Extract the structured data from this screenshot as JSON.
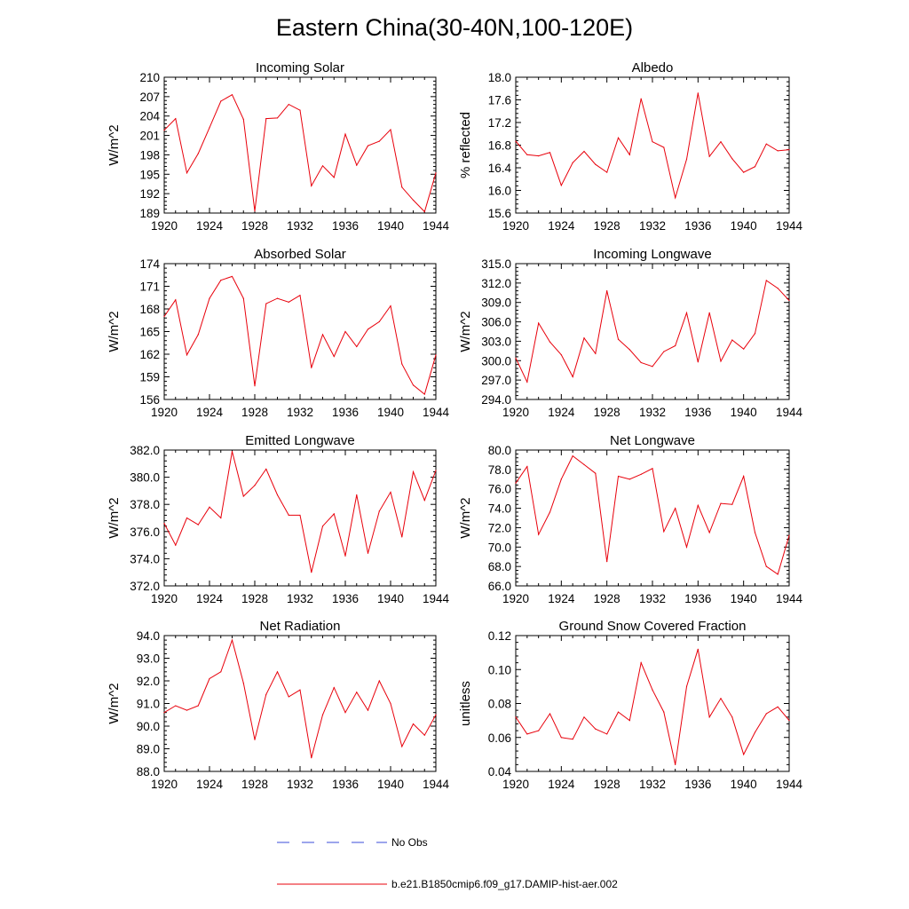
{
  "figure": {
    "title": "Eastern China(30-40N,100-120E)",
    "line_color": "#e8000b"
  },
  "legend": {
    "items": [
      {
        "label": "No Obs",
        "color": "#3a4bd8",
        "style": "dashed"
      },
      {
        "label": "b.e21.B1850cmip6.f09_g17.DAMIP-hist-aer.002",
        "color": "#e8000b",
        "style": "solid"
      }
    ]
  },
  "chart_data": [
    {
      "type": "line",
      "title": "Incoming Solar",
      "xlabel": "",
      "ylabel": "W/m^2",
      "xlim": [
        1920,
        1944
      ],
      "ylim": [
        189,
        210
      ],
      "xticks": [
        "1920",
        "1924",
        "1928",
        "1932",
        "1936",
        "1940",
        "1944"
      ],
      "yticks": [
        "189",
        "192",
        "195",
        "198",
        "201",
        "204",
        "207",
        "210"
      ],
      "x": [
        1920,
        1921,
        1922,
        1923,
        1924,
        1925,
        1926,
        1927,
        1928,
        1929,
        1930,
        1931,
        1932,
        1933,
        1934,
        1935,
        1936,
        1937,
        1938,
        1939,
        1940,
        1941,
        1942,
        1943,
        1944
      ],
      "series": [
        {
          "name": "b.e21.B1850cmip6.f09_g17.DAMIP-hist-aer.002",
          "values": [
            201.8,
            203.6,
            195.2,
            198.2,
            202.2,
            206.3,
            207.3,
            203.5,
            189.3,
            203.6,
            203.7,
            205.8,
            204.9,
            193.2,
            196.3,
            194.5,
            201.2,
            196.4,
            199.4,
            200.1,
            201.9,
            193.0,
            191.0,
            189.2,
            195.2
          ]
        }
      ]
    },
    {
      "type": "line",
      "title": "Albedo",
      "xlabel": "",
      "ylabel": "% reflected",
      "xlim": [
        1920,
        1944
      ],
      "ylim": [
        15.6,
        18.0
      ],
      "xticks": [
        "1920",
        "1924",
        "1928",
        "1932",
        "1936",
        "1940",
        "1944"
      ],
      "yticks": [
        "15.6",
        "16.0",
        "16.4",
        "16.8",
        "17.2",
        "17.6",
        "18.0"
      ],
      "x": [
        1920,
        1921,
        1922,
        1923,
        1924,
        1925,
        1926,
        1927,
        1928,
        1929,
        1930,
        1931,
        1932,
        1933,
        1934,
        1935,
        1936,
        1937,
        1938,
        1939,
        1940,
        1941,
        1942,
        1943,
        1944
      ],
      "series": [
        {
          "name": "b.e21.B1850cmip6.f09_g17.DAMIP-hist-aer.002",
          "values": [
            16.87,
            16.63,
            16.61,
            16.67,
            16.09,
            16.49,
            16.69,
            16.46,
            16.32,
            16.93,
            16.63,
            17.62,
            16.86,
            16.76,
            15.87,
            16.55,
            17.72,
            16.6,
            16.86,
            16.56,
            16.32,
            16.42,
            16.82,
            16.7,
            16.72
          ]
        }
      ]
    },
    {
      "type": "line",
      "title": "Absorbed Solar",
      "xlabel": "",
      "ylabel": "W/m^2",
      "xlim": [
        1920,
        1944
      ],
      "ylim": [
        156,
        174
      ],
      "xticks": [
        "1920",
        "1924",
        "1928",
        "1932",
        "1936",
        "1940",
        "1944"
      ],
      "yticks": [
        "156",
        "159",
        "162",
        "165",
        "168",
        "171",
        "174"
      ],
      "x": [
        1920,
        1921,
        1922,
        1923,
        1924,
        1925,
        1926,
        1927,
        1928,
        1929,
        1930,
        1931,
        1932,
        1933,
        1934,
        1935,
        1936,
        1937,
        1938,
        1939,
        1940,
        1941,
        1942,
        1943,
        1944
      ],
      "series": [
        {
          "name": "b.e21.B1850cmip6.f09_g17.DAMIP-hist-aer.002",
          "values": [
            167.0,
            169.2,
            161.9,
            164.6,
            169.4,
            171.8,
            172.3,
            169.4,
            157.8,
            168.7,
            169.4,
            168.9,
            169.8,
            160.2,
            164.6,
            161.7,
            165.0,
            163.0,
            165.3,
            166.3,
            168.4,
            160.7,
            157.9,
            156.7,
            161.9
          ]
        }
      ]
    },
    {
      "type": "line",
      "title": "Incoming Longwave",
      "xlabel": "",
      "ylabel": "W/m^2",
      "xlim": [
        1920,
        1944
      ],
      "ylim": [
        294.0,
        315.0
      ],
      "xticks": [
        "1920",
        "1924",
        "1928",
        "1932",
        "1936",
        "1940",
        "1944"
      ],
      "yticks": [
        "294.0",
        "297.0",
        "300.0",
        "303.0",
        "306.0",
        "309.0",
        "312.0",
        "315.0"
      ],
      "x": [
        1920,
        1921,
        1922,
        1923,
        1924,
        1925,
        1926,
        1927,
        1928,
        1929,
        1930,
        1931,
        1932,
        1933,
        1934,
        1935,
        1936,
        1937,
        1938,
        1939,
        1940,
        1941,
        1942,
        1943,
        1944
      ],
      "series": [
        {
          "name": "b.e21.B1850cmip6.f09_g17.DAMIP-hist-aer.002",
          "values": [
            300.4,
            296.7,
            305.8,
            302.9,
            300.9,
            297.5,
            303.5,
            301.1,
            310.8,
            303.3,
            301.7,
            299.7,
            299.1,
            301.4,
            302.3,
            307.4,
            299.8,
            307.4,
            299.9,
            303.2,
            301.8,
            304.2,
            312.4,
            311.2,
            309.3
          ]
        }
      ]
    },
    {
      "type": "line",
      "title": "Emitted Longwave",
      "xlabel": "",
      "ylabel": "W/m^2",
      "xlim": [
        1920,
        1944
      ],
      "ylim": [
        372.0,
        382.0
      ],
      "xticks": [
        "1920",
        "1924",
        "1928",
        "1932",
        "1936",
        "1940",
        "1944"
      ],
      "yticks": [
        "372.0",
        "374.0",
        "376.0",
        "378.0",
        "380.0",
        "382.0"
      ],
      "x": [
        1920,
        1921,
        1922,
        1923,
        1924,
        1925,
        1926,
        1927,
        1928,
        1929,
        1930,
        1931,
        1932,
        1933,
        1934,
        1935,
        1936,
        1937,
        1938,
        1939,
        1940,
        1941,
        1942,
        1943,
        1944
      ],
      "series": [
        {
          "name": "b.e21.B1850cmip6.f09_g17.DAMIP-hist-aer.002",
          "values": [
            376.6,
            375.0,
            377.0,
            376.5,
            377.8,
            377.0,
            381.9,
            378.6,
            379.4,
            380.6,
            378.7,
            377.2,
            377.2,
            373.0,
            376.4,
            377.3,
            374.2,
            378.7,
            374.4,
            377.5,
            378.9,
            375.6,
            380.4,
            378.3,
            380.5
          ]
        }
      ]
    },
    {
      "type": "line",
      "title": "Net Longwave",
      "xlabel": "",
      "ylabel": "W/m^2",
      "xlim": [
        1920,
        1944
      ],
      "ylim": [
        66.0,
        80.0
      ],
      "xticks": [
        "1920",
        "1924",
        "1928",
        "1932",
        "1936",
        "1940",
        "1944"
      ],
      "yticks": [
        "66.0",
        "68.0",
        "70.0",
        "72.0",
        "74.0",
        "76.0",
        "78.0",
        "80.0"
      ],
      "x": [
        1920,
        1921,
        1922,
        1923,
        1924,
        1925,
        1926,
        1927,
        1928,
        1929,
        1930,
        1931,
        1932,
        1933,
        1934,
        1935,
        1936,
        1937,
        1938,
        1939,
        1940,
        1941,
        1942,
        1943,
        1944
      ],
      "series": [
        {
          "name": "b.e21.B1850cmip6.f09_g17.DAMIP-hist-aer.002",
          "values": [
            76.6,
            78.3,
            71.3,
            73.6,
            77.0,
            79.4,
            78.5,
            77.6,
            68.5,
            77.3,
            77.0,
            77.5,
            78.1,
            71.6,
            74.0,
            70.0,
            74.3,
            71.5,
            74.5,
            74.4,
            77.3,
            71.5,
            68.0,
            67.2,
            71.2
          ]
        }
      ]
    },
    {
      "type": "line",
      "title": "Net Radiation",
      "xlabel": "",
      "ylabel": "W/m^2",
      "xlim": [
        1920,
        1944
      ],
      "ylim": [
        88.0,
        94.0
      ],
      "xticks": [
        "1920",
        "1924",
        "1928",
        "1932",
        "1936",
        "1940",
        "1944"
      ],
      "yticks": [
        "88.0",
        "89.0",
        "90.0",
        "91.0",
        "92.0",
        "93.0",
        "94.0"
      ],
      "x": [
        1920,
        1921,
        1922,
        1923,
        1924,
        1925,
        1926,
        1927,
        1928,
        1929,
        1930,
        1931,
        1932,
        1933,
        1934,
        1935,
        1936,
        1937,
        1938,
        1939,
        1940,
        1941,
        1942,
        1943,
        1944
      ],
      "series": [
        {
          "name": "b.e21.B1850cmip6.f09_g17.DAMIP-hist-aer.002",
          "values": [
            90.6,
            90.9,
            90.7,
            90.9,
            92.1,
            92.4,
            93.8,
            91.9,
            89.4,
            91.4,
            92.4,
            91.3,
            91.6,
            88.6,
            90.5,
            91.7,
            90.6,
            91.5,
            90.7,
            92.0,
            91.0,
            89.1,
            90.1,
            89.6,
            90.5
          ]
        }
      ]
    },
    {
      "type": "line",
      "title": "Ground Snow Covered Fraction",
      "xlabel": "",
      "ylabel": "unitless",
      "xlim": [
        1920,
        1944
      ],
      "ylim": [
        0.04,
        0.12
      ],
      "xticks": [
        "1920",
        "1924",
        "1928",
        "1932",
        "1936",
        "1940",
        "1944"
      ],
      "yticks": [
        "0.04",
        "0.06",
        "0.08",
        "0.10",
        "0.12"
      ],
      "x": [
        1920,
        1921,
        1922,
        1923,
        1924,
        1925,
        1926,
        1927,
        1928,
        1929,
        1930,
        1931,
        1932,
        1933,
        1934,
        1935,
        1936,
        1937,
        1938,
        1939,
        1940,
        1941,
        1942,
        1943,
        1944
      ],
      "series": [
        {
          "name": "b.e21.B1850cmip6.f09_g17.DAMIP-hist-aer.002",
          "values": [
            0.072,
            0.062,
            0.064,
            0.074,
            0.06,
            0.059,
            0.072,
            0.065,
            0.062,
            0.075,
            0.07,
            0.104,
            0.088,
            0.075,
            0.044,
            0.09,
            0.112,
            0.072,
            0.083,
            0.072,
            0.05,
            0.063,
            0.074,
            0.078,
            0.07
          ]
        }
      ]
    }
  ]
}
